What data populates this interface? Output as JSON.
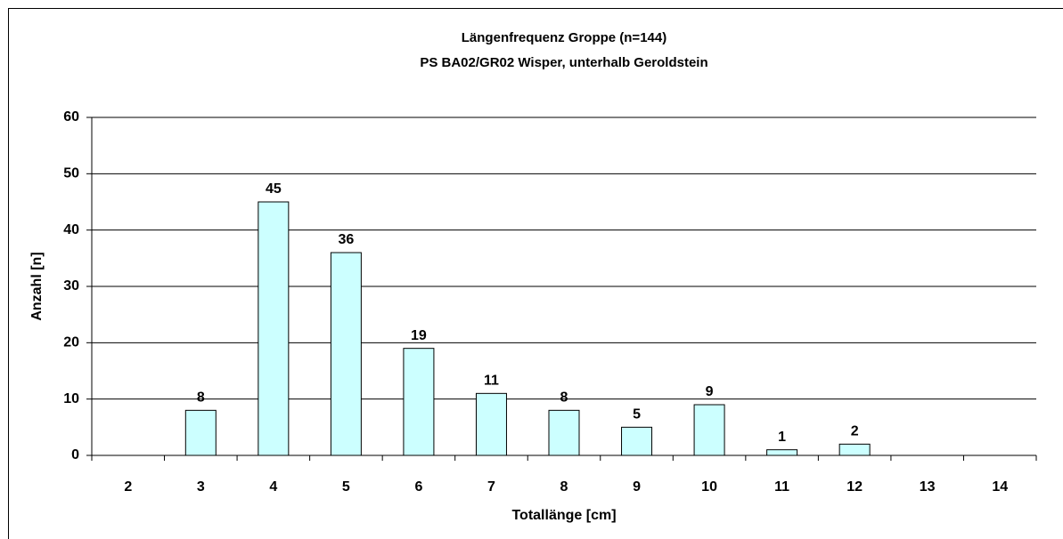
{
  "chart_data": {
    "type": "bar",
    "title": "Längenfrequenz Groppe (n=144)",
    "subtitle": "PS BA02/GR02 Wisper, unterhalb Geroldstein",
    "x_label": "Totallänge [cm]",
    "y_label": "Anzahl [n]",
    "categories": [
      "2",
      "3",
      "4",
      "5",
      "6",
      "7",
      "8",
      "9",
      "10",
      "11",
      "12",
      "13",
      "14"
    ],
    "values": [
      null,
      8,
      45,
      36,
      19,
      11,
      8,
      5,
      9,
      1,
      2,
      null,
      null
    ],
    "color": "#ccffff",
    "ylim": [
      0,
      60
    ],
    "yticks": [
      0,
      10,
      20,
      30,
      40,
      50,
      60
    ],
    "grid": true
  }
}
